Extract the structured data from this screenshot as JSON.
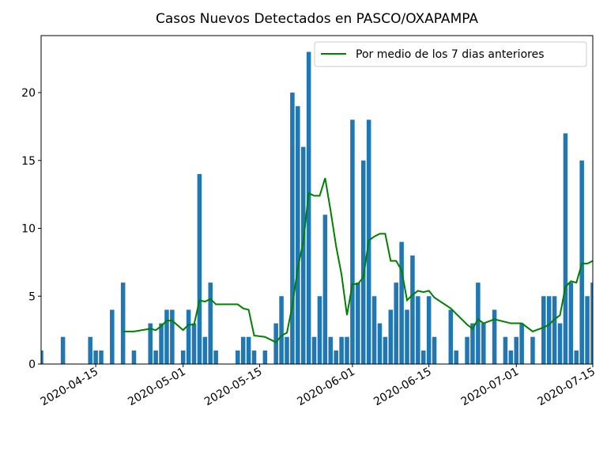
{
  "chart_data": {
    "type": "bar",
    "title": "Casos Nuevos Detectados en PASCO/OXAPAMPA",
    "xlim": [
      "2020-04-05",
      "2020-07-15"
    ],
    "xticks": [
      "2020-04-15",
      "2020-05-01",
      "2020-05-15",
      "2020-06-01",
      "2020-06-15",
      "2020-07-01",
      "2020-07-15"
    ],
    "ylim": [
      0,
      24.2
    ],
    "yticks": [
      0,
      5,
      10,
      15,
      20
    ],
    "legend": "upper right",
    "series": [
      {
        "type": "bar",
        "color": "#1f77b4",
        "x": [
          "2020-04-05",
          "2020-04-09",
          "2020-04-14",
          "2020-04-15",
          "2020-04-16",
          "2020-04-18",
          "2020-04-20",
          "2020-04-22",
          "2020-04-25",
          "2020-04-26",
          "2020-04-27",
          "2020-04-28",
          "2020-04-29",
          "2020-05-01",
          "2020-05-02",
          "2020-05-03",
          "2020-05-04",
          "2020-05-05",
          "2020-05-06",
          "2020-05-07",
          "2020-05-11",
          "2020-05-12",
          "2020-05-13",
          "2020-05-14",
          "2020-05-16",
          "2020-05-18",
          "2020-05-19",
          "2020-05-20",
          "2020-05-21",
          "2020-05-22",
          "2020-05-23",
          "2020-05-24",
          "2020-05-25",
          "2020-05-26",
          "2020-05-27",
          "2020-05-28",
          "2020-05-29",
          "2020-05-30",
          "2020-05-31",
          "2020-06-01",
          "2020-06-02",
          "2020-06-03",
          "2020-06-04",
          "2020-06-05",
          "2020-06-06",
          "2020-06-07",
          "2020-06-08",
          "2020-06-09",
          "2020-06-10",
          "2020-06-11",
          "2020-06-12",
          "2020-06-13",
          "2020-06-14",
          "2020-06-15",
          "2020-06-16",
          "2020-06-19",
          "2020-06-20",
          "2020-06-22",
          "2020-06-23",
          "2020-06-24",
          "2020-06-25",
          "2020-06-27",
          "2020-06-29",
          "2020-06-30",
          "2020-07-01",
          "2020-07-02",
          "2020-07-04",
          "2020-07-06",
          "2020-07-07",
          "2020-07-08",
          "2020-07-09",
          "2020-07-10",
          "2020-07-11",
          "2020-07-12",
          "2020-07-13",
          "2020-07-14",
          "2020-07-15"
        ],
        "values": [
          1,
          2,
          2,
          1,
          1,
          4,
          6,
          1,
          3,
          1,
          3,
          4,
          4,
          1,
          4,
          3,
          14,
          2,
          6,
          1,
          1,
          2,
          2,
          1,
          1,
          3,
          5,
          2,
          20,
          19,
          16,
          23,
          2,
          5,
          11,
          2,
          1,
          2,
          2,
          18,
          6,
          15,
          18,
          5,
          3,
          2,
          4,
          6,
          9,
          4,
          8,
          5,
          1,
          5,
          2,
          4,
          1,
          2,
          3,
          6,
          3,
          4,
          2,
          1,
          2,
          3,
          2,
          5,
          5,
          5,
          3,
          17,
          6,
          1,
          15,
          5,
          6
        ]
      },
      {
        "type": "line",
        "name": "Por medio de los 7 dias anteriores",
        "color": "#008000",
        "x": [
          "2020-04-20",
          "2020-04-22",
          "2020-04-25",
          "2020-04-26",
          "2020-04-27",
          "2020-04-28",
          "2020-04-29",
          "2020-05-01",
          "2020-05-02",
          "2020-05-03",
          "2020-05-04",
          "2020-05-05",
          "2020-05-06",
          "2020-05-07",
          "2020-05-11",
          "2020-05-12",
          "2020-05-13",
          "2020-05-14",
          "2020-05-16",
          "2020-05-18",
          "2020-05-19",
          "2020-05-20",
          "2020-05-21",
          "2020-05-22",
          "2020-05-23",
          "2020-05-24",
          "2020-05-25",
          "2020-05-26",
          "2020-05-27",
          "2020-05-28",
          "2020-05-29",
          "2020-05-30",
          "2020-05-31",
          "2020-06-01",
          "2020-06-02",
          "2020-06-03",
          "2020-06-04",
          "2020-06-05",
          "2020-06-06",
          "2020-06-07",
          "2020-06-08",
          "2020-06-09",
          "2020-06-10",
          "2020-06-11",
          "2020-06-12",
          "2020-06-13",
          "2020-06-14",
          "2020-06-15",
          "2020-06-16",
          "2020-06-19",
          "2020-06-20",
          "2020-06-22",
          "2020-06-23",
          "2020-06-24",
          "2020-06-25",
          "2020-06-27",
          "2020-06-29",
          "2020-06-30",
          "2020-07-01",
          "2020-07-02",
          "2020-07-04",
          "2020-07-06",
          "2020-07-07",
          "2020-07-08",
          "2020-07-09",
          "2020-07-10",
          "2020-07-11",
          "2020-07-12",
          "2020-07-13",
          "2020-07-14",
          "2020-07-15"
        ],
        "values": [
          2.4,
          2.4,
          2.6,
          2.5,
          2.8,
          3.2,
          3.2,
          2.5,
          2.9,
          2.9,
          4.7,
          4.6,
          4.8,
          4.4,
          4.4,
          4.1,
          4.0,
          2.1,
          2.0,
          1.6,
          2.1,
          2.3,
          4.3,
          7.1,
          9.0,
          12.6,
          12.4,
          12.4,
          13.7,
          11.3,
          8.7,
          6.6,
          3.6,
          5.9,
          5.9,
          6.4,
          9.1,
          9.4,
          9.6,
          9.6,
          7.6,
          7.6,
          6.9,
          4.7,
          5.1,
          5.4,
          5.3,
          5.4,
          4.9,
          4.1,
          3.7,
          2.9,
          2.6,
          3.3,
          3.0,
          3.3,
          3.1,
          3.0,
          3.0,
          3.0,
          2.4,
          2.7,
          2.9,
          3.3,
          3.6,
          5.7,
          6.1,
          6.0,
          7.4,
          7.4,
          7.6
        ]
      }
    ]
  }
}
